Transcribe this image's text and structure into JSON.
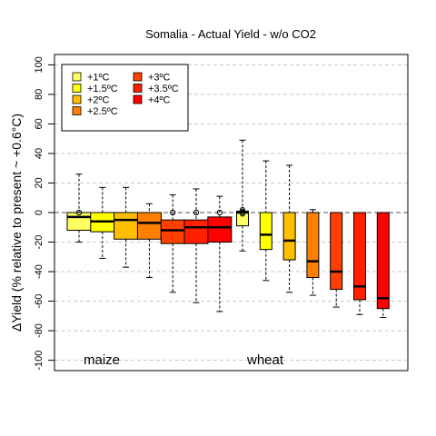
{
  "chart_data": {
    "type": "box",
    "title": "Somalia - Actual Yield - w/o CO2",
    "ylabel": "ΔYield (% relative to present ~ +0.6°C)",
    "ylim": [
      -107,
      107
    ],
    "yticks": [
      -100,
      -80,
      -60,
      -40,
      -20,
      0,
      20,
      40,
      60,
      80,
      100
    ],
    "grid": "horizontal dashed",
    "legend_position": "top-left",
    "legend": [
      {
        "label": "+1ºC",
        "color": "#FFFF60"
      },
      {
        "label": "+1.5ºC",
        "color": "#FFFF00"
      },
      {
        "label": "+2ºC",
        "color": "#FFBF00"
      },
      {
        "label": "+2.5ºC",
        "color": "#FF8000"
      },
      {
        "label": "+3ºC",
        "color": "#FF4000"
      },
      {
        "label": "+3.5ºC",
        "color": "#FF2000"
      },
      {
        "label": "+4ºC",
        "color": "#FF0000"
      }
    ],
    "groups": [
      {
        "name": "maize",
        "boxes": [
          {
            "scenario": "+1ºC",
            "whisker_low": -20,
            "q1": -12,
            "median": -3,
            "q3": 0,
            "whisker_high": 26,
            "outliers": [],
            "mean": 0
          },
          {
            "scenario": "+1.5ºC",
            "whisker_low": -31,
            "q1": -13,
            "median": -6,
            "q3": 0,
            "whisker_high": 17,
            "outliers": [],
            "mean": null
          },
          {
            "scenario": "+2ºC",
            "whisker_low": -37,
            "q1": -18,
            "median": -5,
            "q3": 0,
            "whisker_high": 17,
            "outliers": [],
            "mean": null
          },
          {
            "scenario": "+2.5ºC",
            "whisker_low": -44,
            "q1": -18,
            "median": -7,
            "q3": 0,
            "whisker_high": 6,
            "outliers": [],
            "mean": null
          },
          {
            "scenario": "+3ºC",
            "whisker_low": -54,
            "q1": -21,
            "median": -12,
            "q3": -5,
            "whisker_high": 12,
            "outliers": [],
            "mean": 0
          },
          {
            "scenario": "+3.5ºC",
            "whisker_low": -61,
            "q1": -21,
            "median": -10,
            "q3": -5,
            "whisker_high": 16,
            "outliers": [],
            "mean": 0
          },
          {
            "scenario": "+4ºC",
            "whisker_low": -67,
            "q1": -20,
            "median": -10,
            "q3": -3,
            "whisker_high": 11,
            "outliers": [],
            "mean": 0
          }
        ]
      },
      {
        "name": "wheat",
        "boxes": [
          {
            "scenario": "+1ºC",
            "whisker_low": -26,
            "q1": -9,
            "median": 0,
            "q3": 1,
            "whisker_high": 49,
            "outliers": [
              -1,
              1,
              2
            ],
            "mean": 0
          },
          {
            "scenario": "+1.5ºC",
            "whisker_low": -46,
            "q1": -25,
            "median": -15,
            "q3": 0,
            "whisker_high": 35,
            "outliers": [],
            "mean": null
          },
          {
            "scenario": "+2ºC",
            "whisker_low": -54,
            "q1": -32,
            "median": -19,
            "q3": 0,
            "whisker_high": 32,
            "outliers": [],
            "mean": null
          },
          {
            "scenario": "+2.5ºC",
            "whisker_low": -56,
            "q1": -44,
            "median": -33,
            "q3": 0,
            "whisker_high": 2,
            "outliers": [],
            "mean": null
          },
          {
            "scenario": "+3ºC",
            "whisker_low": -64,
            "q1": -52,
            "median": -40,
            "q3": 0,
            "whisker_high": 0,
            "outliers": [],
            "mean": null
          },
          {
            "scenario": "+3.5ºC",
            "whisker_low": -69,
            "q1": -59,
            "median": -50,
            "q3": 0,
            "whisker_high": 0,
            "outliers": [],
            "mean": null
          },
          {
            "scenario": "+4ºC",
            "whisker_low": -71,
            "q1": -65,
            "median": -58,
            "q3": 0,
            "whisker_high": 0,
            "outliers": [],
            "mean": null
          }
        ]
      }
    ]
  }
}
